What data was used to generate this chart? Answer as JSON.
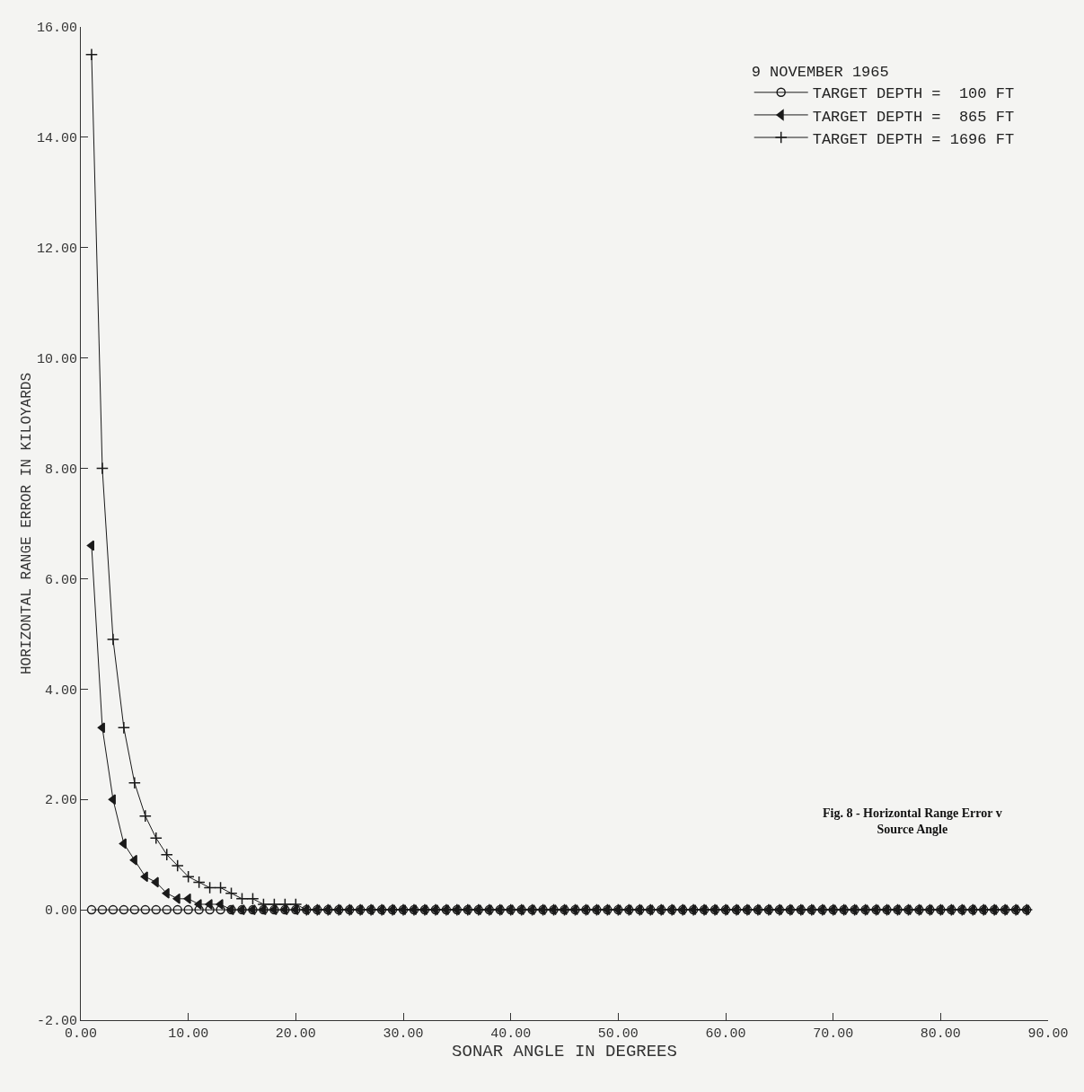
{
  "chart_data": {
    "type": "line",
    "annotations": [
      "Fig. 8 - Horizontal Range Error v\nSource Angle"
    ],
    "xlabel": "SONAR ANGLE IN DEGREES",
    "ylabel": "HORIZONTAL RANGE ERROR IN KILOYARDS",
    "legend_title": "9 NOVEMBER 1965",
    "legend": "top right",
    "grid": false,
    "line_style": "solid",
    "x": [
      1,
      2,
      3,
      4,
      5,
      6,
      7,
      8,
      9,
      10,
      11,
      12,
      13,
      14,
      15,
      16,
      17,
      18,
      19,
      20,
      21,
      22,
      23,
      24,
      25,
      26,
      27,
      28,
      29,
      30,
      31,
      32,
      33,
      34,
      35,
      36,
      37,
      38,
      39,
      40,
      41,
      42,
      43,
      44,
      45,
      46,
      47,
      48,
      49,
      50,
      51,
      52,
      53,
      54,
      55,
      56,
      57,
      58,
      59,
      60,
      61,
      62,
      63,
      64,
      65,
      66,
      67,
      68,
      69,
      70,
      71,
      72,
      73,
      74,
      75,
      76,
      77,
      78,
      79,
      80,
      81,
      82,
      83,
      84,
      85,
      86,
      87,
      88
    ],
    "xlim": [
      0,
      90
    ],
    "xticks": [
      {
        "value": 0,
        "label": "0.00"
      },
      {
        "value": 10,
        "label": "10.00"
      },
      {
        "value": 20,
        "label": "20.00"
      },
      {
        "value": 30,
        "label": "30.00"
      },
      {
        "value": 40,
        "label": "40.00"
      },
      {
        "value": 50,
        "label": "50.00"
      },
      {
        "value": 60,
        "label": "60.00"
      },
      {
        "value": 70,
        "label": "70.00"
      },
      {
        "value": 80,
        "label": "80.00"
      },
      {
        "value": 90,
        "label": "90.00"
      }
    ],
    "ylim": [
      -2,
      16
    ],
    "yticks": [
      {
        "value": -2,
        "label": "-2.00"
      },
      {
        "value": 0,
        "label": "0.00"
      },
      {
        "value": 2,
        "label": "2.00"
      },
      {
        "value": 4,
        "label": "4.00"
      },
      {
        "value": 6,
        "label": "6.00"
      },
      {
        "value": 8,
        "label": "8.00"
      },
      {
        "value": 10,
        "label": "10.00"
      },
      {
        "value": 12,
        "label": "12.00"
      },
      {
        "value": 14,
        "label": "14.00"
      },
      {
        "value": 16,
        "label": "16.00"
      }
    ],
    "series": [
      {
        "name": "TARGET DEPTH =  100 FT",
        "color": "#1a1a1a",
        "marker": "circle",
        "values": [
          0,
          0,
          0,
          0,
          0,
          0,
          0,
          0,
          0,
          0,
          0,
          0,
          0,
          0,
          0,
          0,
          0,
          0,
          0,
          0,
          0,
          0,
          0,
          0,
          0,
          0,
          0,
          0,
          0,
          0,
          0,
          0,
          0,
          0,
          0,
          0,
          0,
          0,
          0,
          0,
          0,
          0,
          0,
          0,
          0,
          0,
          0,
          0,
          0,
          0,
          0,
          0,
          0,
          0,
          0,
          0,
          0,
          0,
          0,
          0,
          0,
          0,
          0,
          0,
          0,
          0,
          0,
          0,
          0,
          0,
          0,
          0,
          0,
          0,
          0,
          0,
          0,
          0,
          0,
          0,
          0,
          0,
          0,
          0,
          0,
          0,
          0,
          0
        ]
      },
      {
        "name": "TARGET DEPTH =  865 FT",
        "color": "#1a1a1a",
        "marker": "triangle",
        "values": [
          6.6,
          3.3,
          2,
          1.2,
          0.9,
          0.6,
          0.5,
          0.3,
          0.2,
          0.2,
          0.1,
          0.1,
          0.1,
          0,
          0,
          0,
          0,
          0,
          0,
          0,
          0,
          0,
          0,
          0,
          0,
          0,
          0,
          0,
          0,
          0,
          0,
          0,
          0,
          0,
          0,
          0,
          0,
          0,
          0,
          0,
          0,
          0,
          0,
          0,
          0,
          0,
          0,
          0,
          0,
          0,
          0,
          0,
          0,
          0,
          0,
          0,
          0,
          0,
          0,
          0,
          0,
          0,
          0,
          0,
          0,
          0,
          0,
          0,
          0,
          0,
          0,
          0,
          0,
          0,
          0,
          0,
          0,
          0,
          0,
          0,
          0,
          0,
          0,
          0,
          0,
          0,
          0,
          0
        ]
      },
      {
        "name": "TARGET DEPTH = 1696 FT",
        "color": "#1a1a1a",
        "marker": "cross",
        "values": [
          15.5,
          8,
          4.9,
          3.3,
          2.3,
          1.7,
          1.3,
          1,
          0.8,
          0.6,
          0.5,
          0.4,
          0.4,
          0.3,
          0.2,
          0.2,
          0.1,
          0.1,
          0.1,
          0.1,
          0,
          0,
          0,
          0,
          0,
          0,
          0,
          0,
          0,
          0,
          0,
          0,
          0,
          0,
          0,
          0,
          0,
          0,
          0,
          0,
          0,
          0,
          0,
          0,
          0,
          0,
          0,
          0,
          0,
          0,
          0,
          0,
          0,
          0,
          0,
          0,
          0,
          0,
          0,
          0,
          0,
          0,
          0,
          0,
          0,
          0,
          0,
          0,
          0,
          0,
          0,
          0,
          0,
          0,
          0,
          0,
          0,
          0,
          0,
          0,
          0,
          0,
          0,
          0,
          0,
          0,
          0,
          0
        ]
      }
    ]
  }
}
